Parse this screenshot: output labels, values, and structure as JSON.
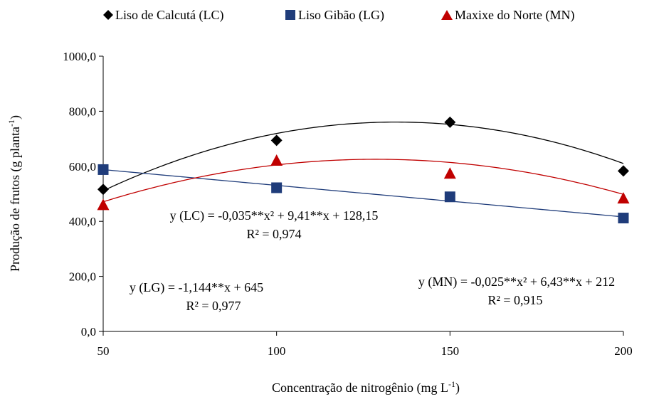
{
  "chart_data": {
    "type": "scatter",
    "xlabel": "Concentração de nitrogênio  (mg L",
    "xlabel_sup": "-1",
    "xlabel_end": ")",
    "ylabel": "Produção de frutos (g planta",
    "ylabel_sup": "-1",
    "ylabel_end": ")",
    "xlim": [
      50,
      200
    ],
    "ylim": [
      0,
      1000
    ],
    "x_ticks": [
      50,
      100,
      150,
      200
    ],
    "x_tick_labels": [
      "50",
      "100",
      "150",
      "200"
    ],
    "y_ticks": [
      0,
      200,
      400,
      600,
      800,
      1000
    ],
    "y_tick_labels": [
      "0,0",
      "200,0",
      "400,0",
      "600,0",
      "800,0",
      "1000,0"
    ],
    "grid": false,
    "legend_position": "top",
    "series": [
      {
        "name": "Liso de Calcutá (LC)",
        "marker": "diamond",
        "color": "#000000",
        "line_color": "#000000",
        "x": [
          50,
          100,
          150,
          200
        ],
        "values": [
          516,
          694,
          760,
          583
        ],
        "fit": {
          "a": -0.035,
          "b": 9.41,
          "c": 128.15
        }
      },
      {
        "name": "Liso Gibão (LG)",
        "marker": "square",
        "color": "#1f3c7a",
        "line_color": "#1f3c7a",
        "x": [
          50,
          100,
          150,
          200
        ],
        "values": [
          588,
          522,
          489,
          412
        ],
        "fit": {
          "a": 0,
          "b": -1.144,
          "c": 645
        }
      },
      {
        "name": "Maxixe do Norte (MN)",
        "marker": "triangle",
        "color": "#c00000",
        "line_color": "#c00000",
        "x": [
          50,
          100,
          150,
          200
        ],
        "values": [
          459,
          620,
          573,
          483
        ],
        "fit": {
          "a": -0.025,
          "b": 6.43,
          "c": 212
        }
      }
    ],
    "annotations": [
      {
        "id": "lc",
        "eq": "y (LC) = -0,035**x² + 9,41**x + 128,15",
        "r2": "R² = 0,974"
      },
      {
        "id": "lg",
        "eq": "y (LG) = -1,144**x + 645",
        "r2": "R² = 0,977"
      },
      {
        "id": "mn",
        "eq": "y (MN) = -0,025**x² + 6,43**x + 212",
        "r2": "R² = 0,915"
      }
    ]
  }
}
